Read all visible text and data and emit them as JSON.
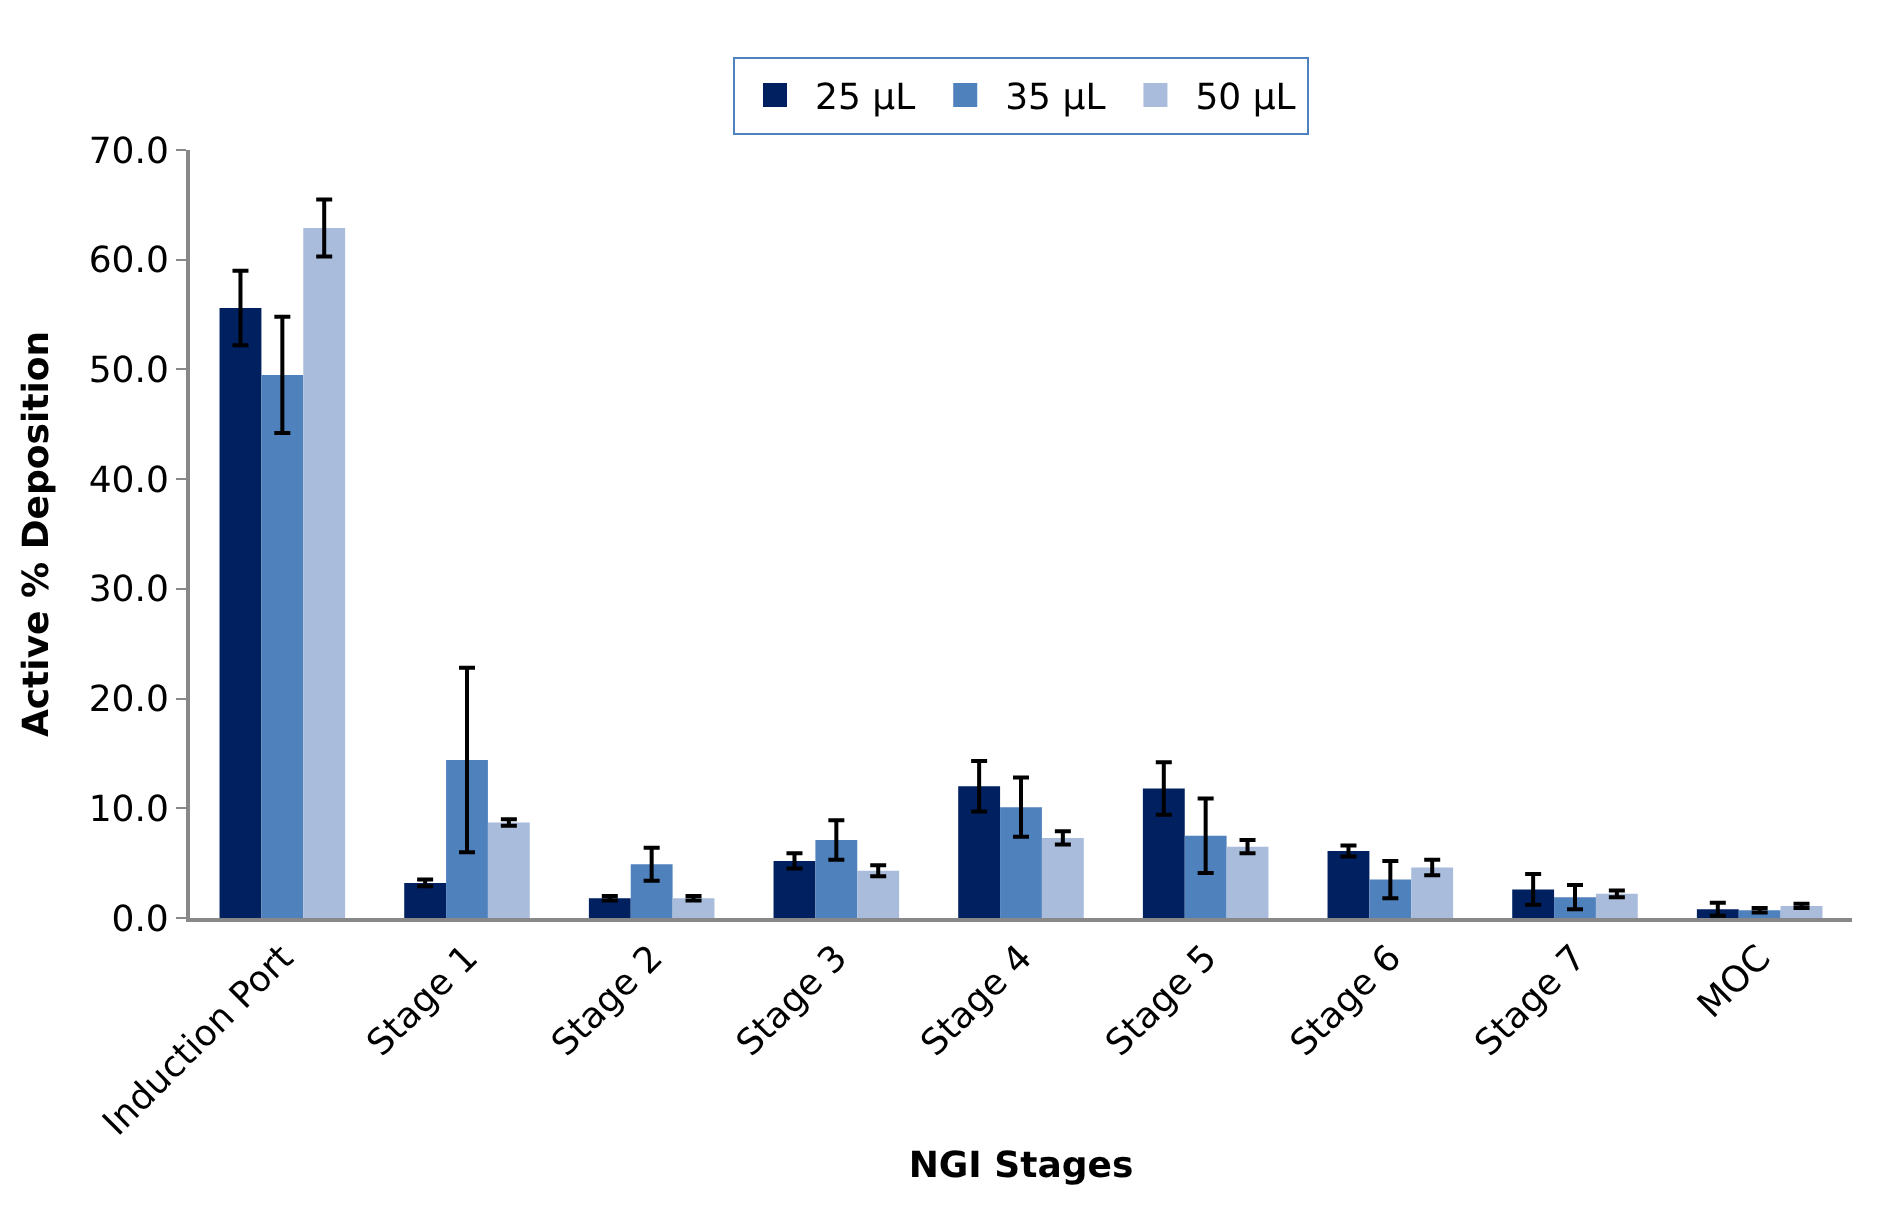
{
  "chart_data": {
    "type": "bar",
    "xlabel": "NGI Stages",
    "ylabel": "Active % Deposition",
    "categories": [
      "Induction Port",
      "Stage 1",
      "Stage 2",
      "Stage 3",
      "Stage 4",
      "Stage 5",
      "Stage 6",
      "Stage 7",
      "MOC"
    ],
    "series": [
      {
        "name": "25 µL",
        "color": "#002060",
        "values": [
          55.6,
          3.2,
          1.8,
          5.2,
          12.0,
          11.8,
          6.1,
          2.6,
          0.8
        ],
        "errors": [
          3.4,
          0.3,
          0.2,
          0.7,
          2.3,
          2.4,
          0.5,
          1.4,
          0.6
        ]
      },
      {
        "name": "35 µL",
        "color": "#4f81bd",
        "values": [
          49.5,
          14.4,
          4.9,
          7.1,
          10.1,
          7.5,
          3.5,
          1.9,
          0.7
        ],
        "errors": [
          5.3,
          8.4,
          1.5,
          1.8,
          2.7,
          3.4,
          1.7,
          1.1,
          0.2
        ]
      },
      {
        "name": "50 µL",
        "color": "#a9bcdb",
        "values": [
          62.9,
          8.7,
          1.8,
          4.3,
          7.3,
          6.5,
          4.6,
          2.2,
          1.1
        ],
        "errors": [
          2.6,
          0.3,
          0.2,
          0.5,
          0.6,
          0.6,
          0.7,
          0.3,
          0.2
        ]
      }
    ],
    "ylim": [
      0,
      70
    ],
    "yticks": [
      {
        "value": 0,
        "label": "0.0"
      },
      {
        "value": 10,
        "label": "10.0"
      },
      {
        "value": 20,
        "label": "20.0"
      },
      {
        "value": 30,
        "label": "30.0"
      },
      {
        "value": 40,
        "label": "40.0"
      },
      {
        "value": 50,
        "label": "50.0"
      },
      {
        "value": 60,
        "label": "60.0"
      },
      {
        "value": 70,
        "label": "70.0"
      }
    ],
    "grid": false,
    "legend": "top"
  }
}
